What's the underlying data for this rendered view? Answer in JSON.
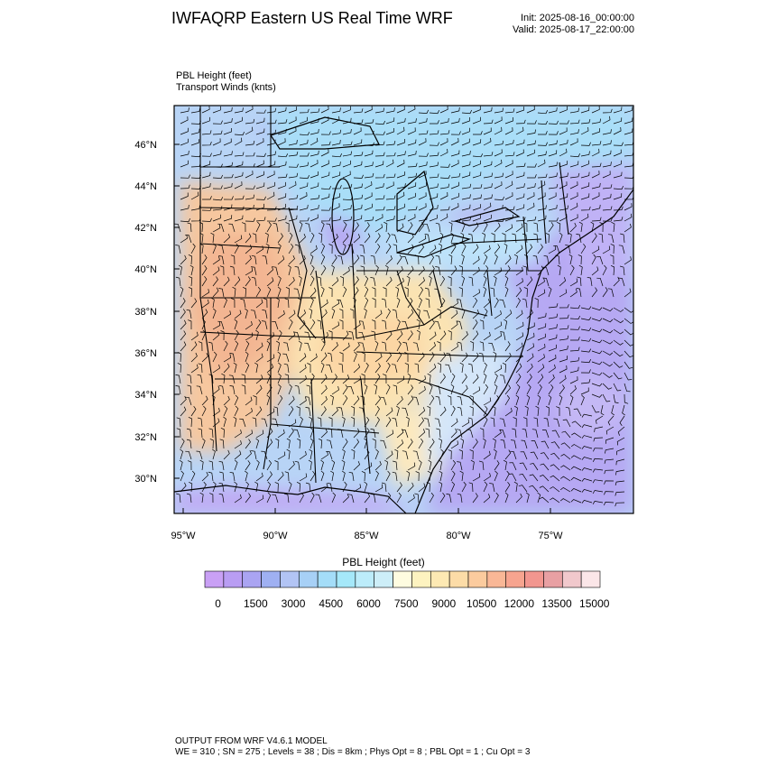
{
  "header": {
    "title": "IWFAQRP Eastern US Real Time WRF",
    "init": "Init: 2025-08-16_00:00:00",
    "valid": "Valid: 2025-08-17_22:00:00",
    "field1": "PBL Height   (feet)",
    "field2": "Transport Winds   (knts)"
  },
  "map": {
    "lat_labels": [
      "46°N",
      "44°N",
      "42°N",
      "40°N",
      "38°N",
      "36°N",
      "34°N",
      "32°N",
      "30°N"
    ],
    "lon_labels": [
      "95°W",
      "90°W",
      "85°W",
      "80°W",
      "75°W"
    ]
  },
  "colorbar": {
    "title": "PBL Height  (feet)",
    "labels": [
      "0",
      "1500",
      "3000",
      "4500",
      "6000",
      "7500",
      "9000",
      "10500",
      "12000",
      "13500",
      "15000"
    ],
    "colors": [
      "#c9a0f5",
      "#b99df3",
      "#aaa4f2",
      "#9fb0f2",
      "#b2c4f4",
      "#a7d0f6",
      "#a4ddf8",
      "#a5e8f9",
      "#bcecfa",
      "#cdeef8",
      "#fefce0",
      "#fdf3c0",
      "#fde9b3",
      "#fcdca7",
      "#fbcb9e",
      "#f9b796",
      "#f7a48f",
      "#f2968f",
      "#e8a0a3",
      "#f1c8cc",
      "#fbe6e8"
    ]
  },
  "footer": {
    "line1": "OUTPUT FROM WRF V4.6.1 MODEL",
    "line2": "WE = 310 ; SN = 275 ; Levels = 38 ; Dis = 8km ; Phys Opt = 8 ; PBL Opt = 1 ; Cu Opt = 3"
  }
}
